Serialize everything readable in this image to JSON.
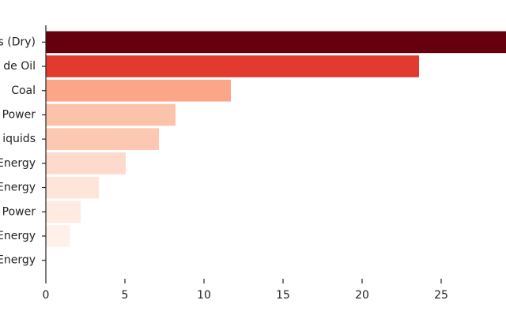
{
  "chart_data": {
    "type": "barh",
    "categories": [
      "s (Dry)",
      "de Oil",
      "Coal",
      "Power",
      "iquids",
      "Energy",
      "Energy",
      "Power",
      "Energy",
      "Energy"
    ],
    "values": [
      29.5,
      23.6,
      11.7,
      8.2,
      7.15,
      5.05,
      3.35,
      2.2,
      1.5,
      0
    ],
    "colors": [
      "#67000d",
      "#e33a2f",
      "#fba688",
      "#fcc3ab",
      "#fcc8b2",
      "#fddacc",
      "#fee5d9",
      "#feeae1",
      "#fff0e9",
      "#fff5f0"
    ],
    "xlim": [
      0,
      29.1
    ],
    "xticks": [
      0,
      5,
      10,
      15,
      20,
      25
    ]
  }
}
